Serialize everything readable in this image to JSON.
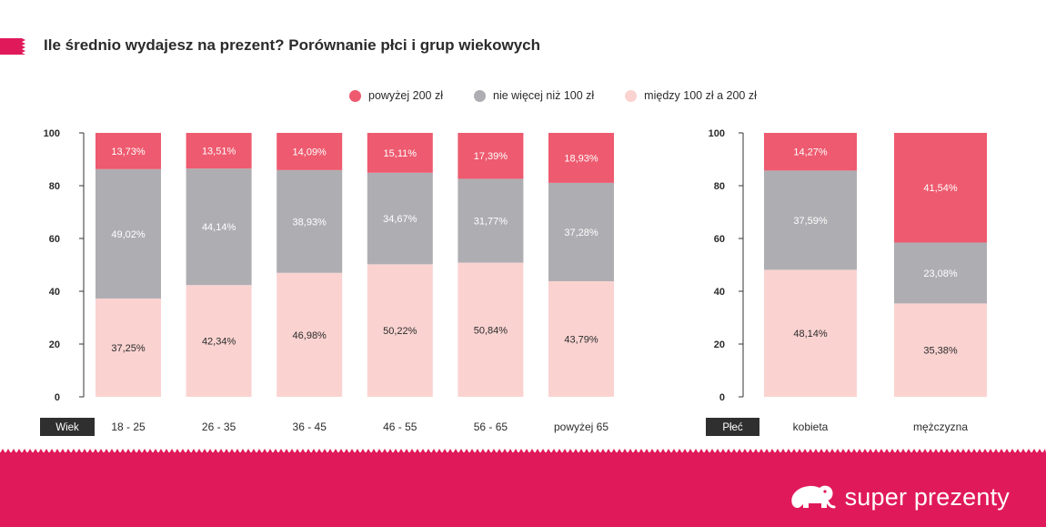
{
  "title": "Ile średnio wydajesz na prezent? Porównanie płci i grup wiekowych",
  "legend": [
    {
      "label": "powyżej 200 zł",
      "color": "#ee5a6f"
    },
    {
      "label": "nie więcej niż 100 zł",
      "color": "#aeaeb2"
    },
    {
      "label": "między 100 zł a 200 zł",
      "color": "#fad3d1"
    }
  ],
  "brand": {
    "name": "super prezenty",
    "logo_icon": "elephant-icon"
  },
  "colors": {
    "accent": "#e0195b",
    "top": "#ee5a6f",
    "middle": "#aeaeb2",
    "bottom": "#fad3d1"
  },
  "chart_data": [
    {
      "type": "bar",
      "stacked": true,
      "axis_badge": "Wiek",
      "categories": [
        "18 - 25",
        "26 - 35",
        "36 - 45",
        "46 - 55",
        "56 - 65",
        "powyżej 65"
      ],
      "yticks": [
        0,
        20,
        40,
        60,
        80,
        100
      ],
      "ylim": [
        0,
        100
      ],
      "series": [
        {
          "name": "między 100 zł a 200 zł",
          "values": [
            37.25,
            42.34,
            46.98,
            50.22,
            50.84,
            43.79
          ],
          "labels": [
            "37,25%",
            "42,34%",
            "46,98%",
            "50,22%",
            "50,84%",
            "43,79%"
          ]
        },
        {
          "name": "nie więcej niż 100 zł",
          "values": [
            49.02,
            44.14,
            38.93,
            34.67,
            31.77,
            37.28
          ],
          "labels": [
            "49,02%",
            "44,14%",
            "38,93%",
            "34,67%",
            "31,77%",
            "37,28%"
          ]
        },
        {
          "name": "powyżej 200 zł",
          "values": [
            13.73,
            13.51,
            14.09,
            15.11,
            17.39,
            18.93
          ],
          "labels": [
            "13,73%",
            "13,51%",
            "14,09%",
            "15,11%",
            "17,39%",
            "18,93%"
          ]
        }
      ]
    },
    {
      "type": "bar",
      "stacked": true,
      "axis_badge": "Płeć",
      "categories": [
        "kobieta",
        "mężczyzna"
      ],
      "yticks": [
        0,
        20,
        40,
        60,
        80,
        100
      ],
      "ylim": [
        0,
        100
      ],
      "series": [
        {
          "name": "między 100 zł a 200 zł",
          "values": [
            48.14,
            35.38
          ],
          "labels": [
            "48,14%",
            "35,38%"
          ]
        },
        {
          "name": "nie więcej niż 100 zł",
          "values": [
            37.59,
            23.08
          ],
          "labels": [
            "37,59%",
            "23,08%"
          ]
        },
        {
          "name": "powyżej 200 zł",
          "values": [
            14.27,
            41.54
          ],
          "labels": [
            "14,27%",
            "41,54%"
          ]
        }
      ]
    }
  ]
}
